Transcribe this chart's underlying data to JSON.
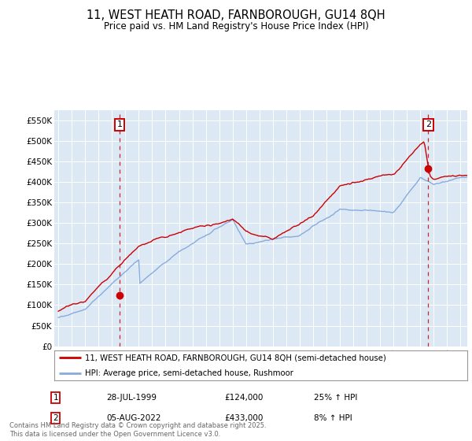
{
  "title": "11, WEST HEATH ROAD, FARNBOROUGH, GU14 8QH",
  "subtitle": "Price paid vs. HM Land Registry's House Price Index (HPI)",
  "legend_line1": "11, WEST HEATH ROAD, FARNBOROUGH, GU14 8QH (semi-detached house)",
  "legend_line2": "HPI: Average price, semi-detached house, Rushmoor",
  "annotation1_label": "1",
  "annotation1_date": "28-JUL-1999",
  "annotation1_price": "£124,000",
  "annotation1_hpi": "25% ↑ HPI",
  "annotation2_label": "2",
  "annotation2_date": "05-AUG-2022",
  "annotation2_price": "£433,000",
  "annotation2_hpi": "8% ↑ HPI",
  "footer": "Contains HM Land Registry data © Crown copyright and database right 2025.\nThis data is licensed under the Open Government Licence v3.0.",
  "property_color": "#cc0000",
  "hpi_color": "#88aadd",
  "bg_color": "#dce9f5",
  "ylim": [
    0,
    575000
  ],
  "yticks": [
    0,
    50000,
    100000,
    150000,
    200000,
    250000,
    300000,
    350000,
    400000,
    450000,
    500000,
    550000
  ],
  "ytick_labels": [
    "£0",
    "£50K",
    "£100K",
    "£150K",
    "£200K",
    "£250K",
    "£300K",
    "£350K",
    "£400K",
    "£450K",
    "£500K",
    "£550K"
  ],
  "purchase1_year": 1999.58,
  "purchase1_price": 124000,
  "purchase2_year": 2022.59,
  "purchase2_price": 433000,
  "xmin": 1994.7,
  "xmax": 2025.5,
  "xticks": [
    1995,
    1996,
    1997,
    1998,
    1999,
    2000,
    2001,
    2002,
    2003,
    2004,
    2005,
    2006,
    2007,
    2008,
    2009,
    2010,
    2011,
    2012,
    2013,
    2014,
    2015,
    2016,
    2017,
    2018,
    2019,
    2020,
    2021,
    2022,
    2023,
    2024,
    2025
  ]
}
